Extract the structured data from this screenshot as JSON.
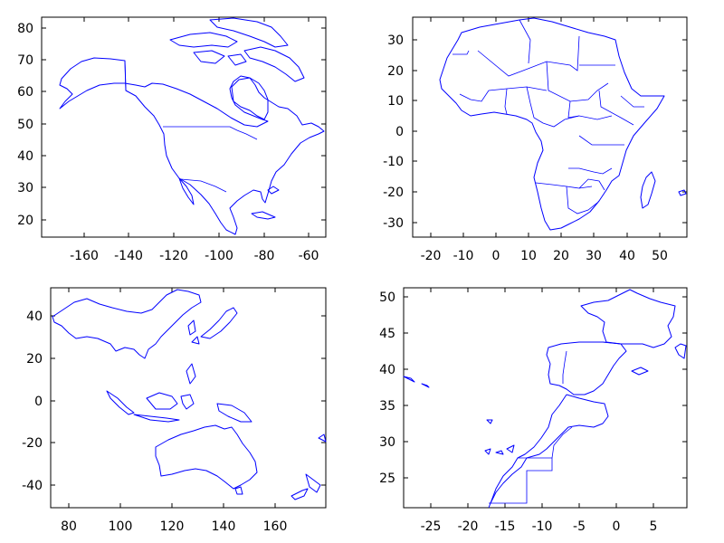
{
  "colors": {
    "map_line": "#0000ff",
    "axis": "#000000",
    "background": "#ffffff"
  },
  "maps": [
    {
      "id": "north-america",
      "x_ticks": [
        "-160",
        "-140",
        "-120",
        "-100",
        "-80",
        "-60"
      ],
      "y_ticks": [
        "20",
        "30",
        "40",
        "50",
        "60",
        "70",
        "80"
      ],
      "x_range": [
        -178,
        -52
      ],
      "y_range": [
        14,
        84
      ]
    },
    {
      "id": "africa",
      "x_ticks": [
        "-20",
        "-10",
        "0",
        "10",
        "20",
        "30",
        "40",
        "50"
      ],
      "y_ticks": [
        "-30",
        "-20",
        "-10",
        "0",
        "10",
        "20",
        "30"
      ],
      "x_range": [
        -26,
        58
      ],
      "y_range": [
        -35,
        38
      ]
    },
    {
      "id": "asia-oceania",
      "x_ticks": [
        "80",
        "100",
        "120",
        "140",
        "160"
      ],
      "y_ticks": [
        "-40",
        "-20",
        "0",
        "20",
        "40"
      ],
      "x_range": [
        73,
        180
      ],
      "y_range": [
        -51,
        53
      ]
    },
    {
      "id": "iberia-morocco",
      "x_ticks": [
        "-25",
        "-20",
        "-15",
        "-10",
        "-5",
        "0",
        "5"
      ],
      "y_ticks": [
        "25",
        "30",
        "35",
        "40",
        "45",
        "50"
      ],
      "x_range": [
        -29,
        9.5
      ],
      "y_range": [
        21,
        51
      ]
    }
  ]
}
